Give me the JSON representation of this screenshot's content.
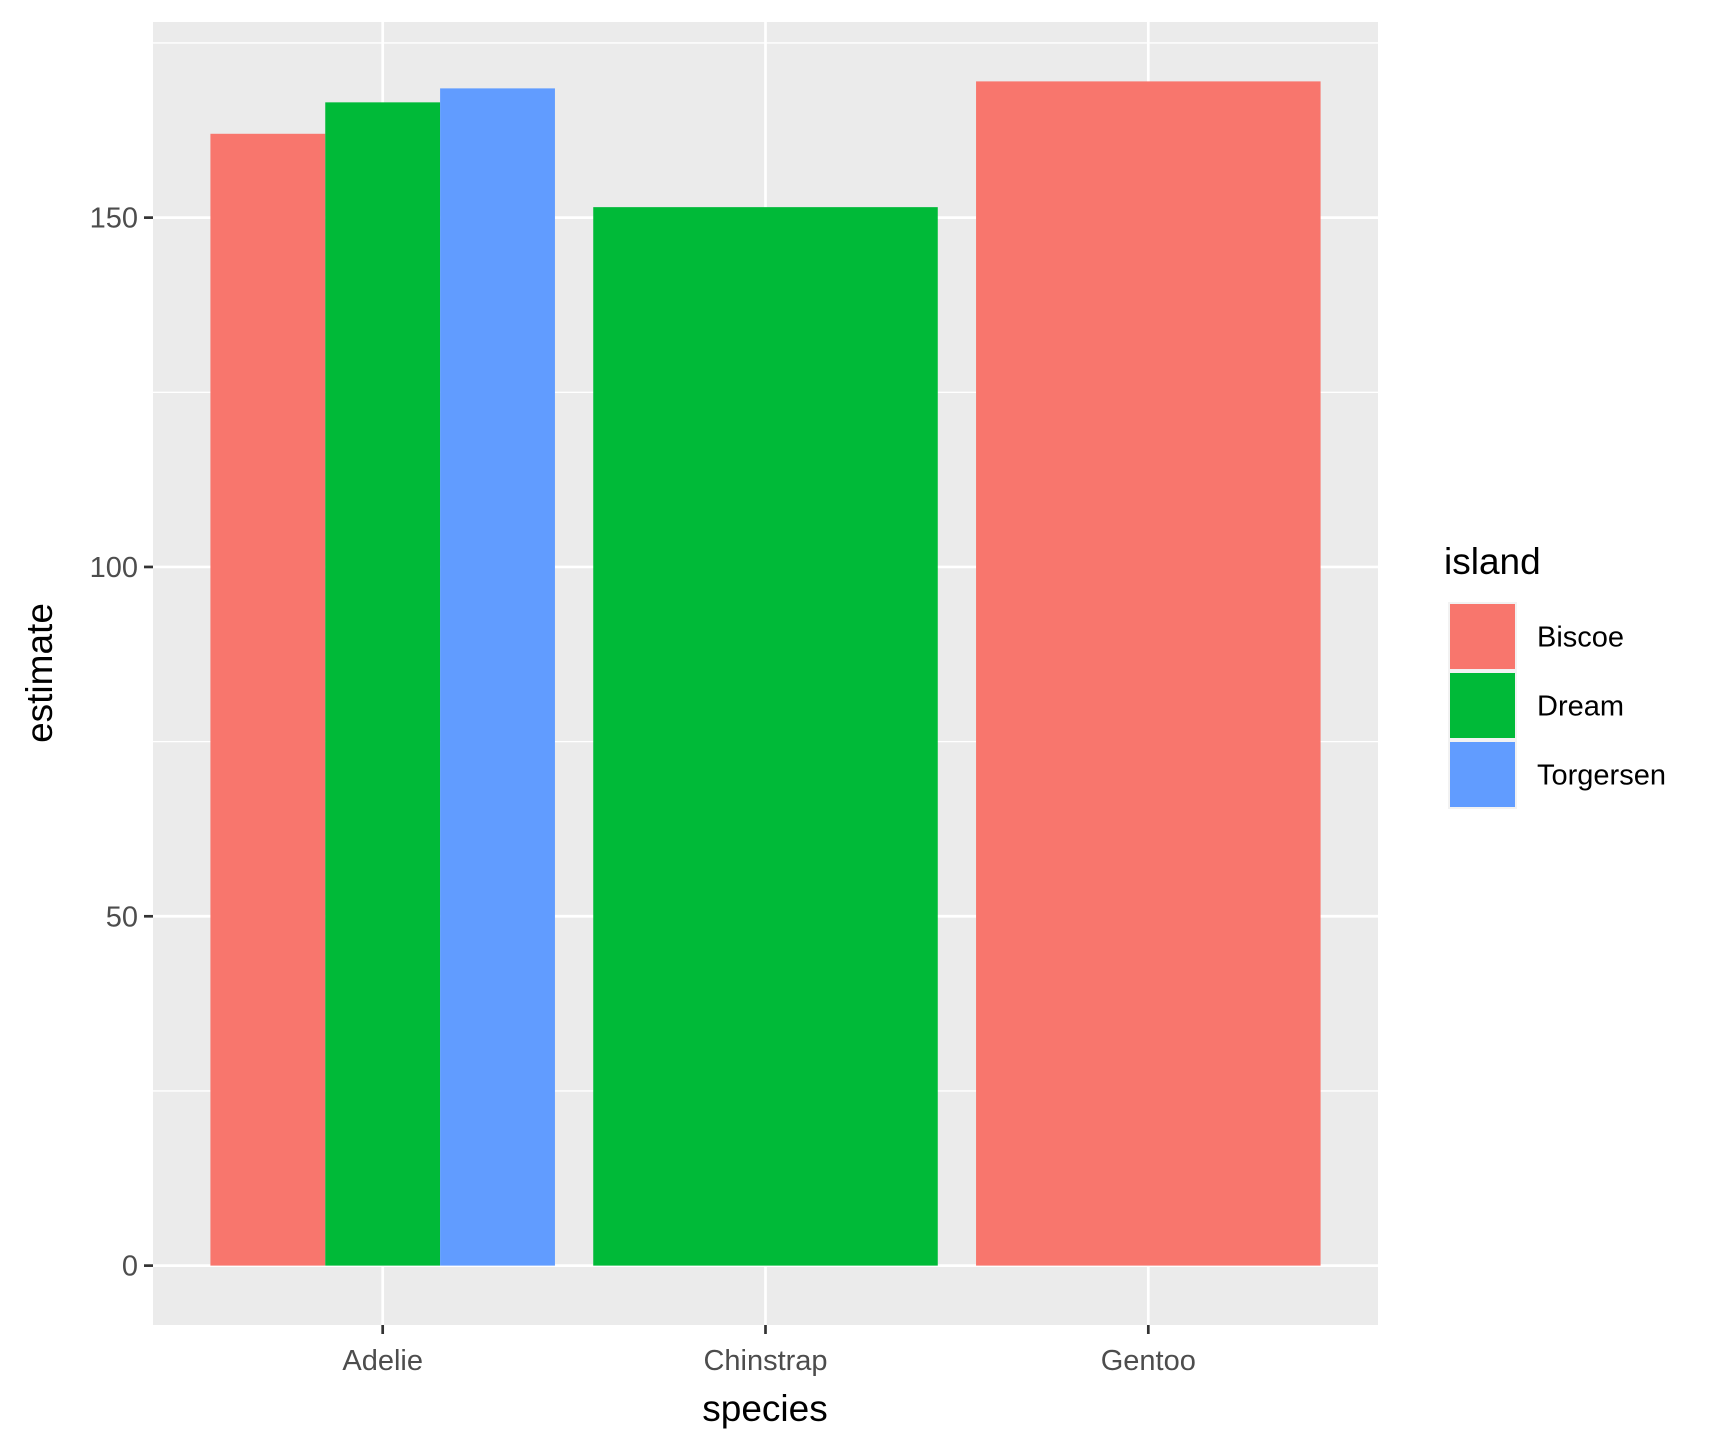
{
  "chart_data": {
    "type": "bar",
    "xlabel": "species",
    "ylabel": "estimate",
    "ylim": [
      -8.5,
      178
    ],
    "yticks": [
      0,
      50,
      100,
      150
    ],
    "categories": [
      "Adelie",
      "Chinstrap",
      "Gentoo"
    ],
    "grid": true,
    "legend_position": "right",
    "legend_title": "island",
    "series": [
      {
        "name": "Biscoe",
        "color": "#F8766D",
        "values": [
          162,
          null,
          169.5
        ]
      },
      {
        "name": "Dream",
        "color": "#00BA38",
        "values": [
          166.5,
          151.5,
          null
        ]
      },
      {
        "name": "Torgersen",
        "color": "#619CFF",
        "values": [
          168.5,
          null,
          null
        ]
      }
    ]
  }
}
